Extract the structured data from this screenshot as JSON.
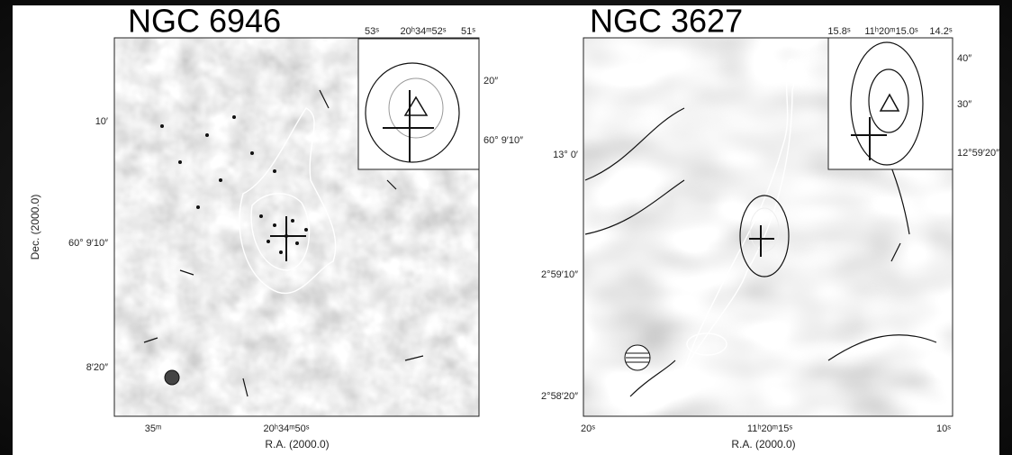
{
  "panels": [
    {
      "title": "NGC 6946",
      "x_label": "R.A. (2000.0)",
      "y_label": "Dec. (2000.0)",
      "x_ticks": [
        "35ᵐ",
        "20ʰ34ᵐ50ˢ"
      ],
      "y_ticks": [
        "10′",
        "60° 9′10″",
        "8′20″"
      ],
      "inset": {
        "top_ticks": [
          "53ˢ",
          "20ʰ34ᵐ52ˢ",
          "51ˢ"
        ],
        "right_ticks": [
          "20″",
          "60° 9′10″"
        ]
      }
    },
    {
      "title": "NGC 3627",
      "x_label": "R.A. (2000.0)",
      "x_ticks": [
        "20ˢ",
        "11ʰ20ᵐ15ˢ",
        "10ˢ"
      ],
      "y_ticks": [
        "13° 0′",
        "2°59′10″",
        "2°58′20″"
      ],
      "inset": {
        "top_ticks": [
          "15.8ˢ",
          "11ʰ20ᵐ15.0ˢ",
          "14.2ˢ"
        ],
        "right_ticks": [
          "40″",
          "30″",
          "12°59′20″"
        ]
      }
    }
  ]
}
